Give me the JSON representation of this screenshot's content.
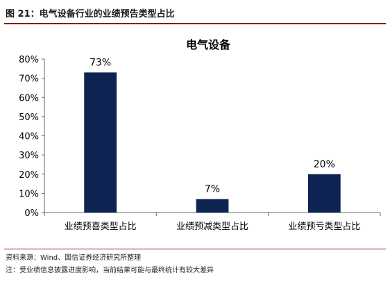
{
  "figure": {
    "title": "图 21：电气设备行业的业绩预告类型占比",
    "source": "资料来源：Wind、国信证券经济研究所整理",
    "note": "注：受业绩信息披露进度影响，当前结果可能与最终统计有较大差异"
  },
  "colors": {
    "bar": "#0d2452",
    "rule": "#8b1a1a"
  },
  "chart_data": {
    "type": "bar",
    "title": "电气设备",
    "categories": [
      "业绩预喜类型占比",
      "业绩预减类型占比",
      "业绩预亏类型占比"
    ],
    "values": [
      0.73,
      0.07,
      0.2
    ],
    "data_labels": [
      "73%",
      "7%",
      "20%"
    ],
    "yticks": [
      "0%",
      "10%",
      "20%",
      "30%",
      "40%",
      "50%",
      "60%",
      "70%",
      "80%"
    ],
    "ylim": [
      0,
      0.8
    ],
    "grid": false,
    "legend": "none"
  }
}
